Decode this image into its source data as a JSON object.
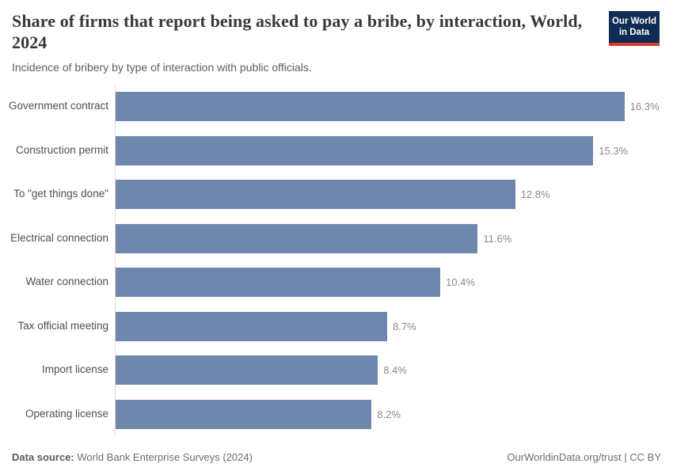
{
  "header": {
    "title": "Share of firms that report being asked to pay a bribe, by interaction, World, 2024",
    "subtitle": "Incidence of bribery by type of interaction with public officials.",
    "logo": {
      "line1": "Our World",
      "line2": "in Data",
      "navy_color": "#0f2c52",
      "red_color": "#dc3a2f"
    }
  },
  "chart_data": {
    "type": "bar",
    "orientation": "horizontal",
    "categories": [
      "Government contract",
      "Construction permit",
      "To \"get things done\"",
      "Electrical connection",
      "Water connection",
      "Tax official meeting",
      "Import license",
      "Operating license"
    ],
    "values": [
      16.3,
      15.3,
      12.8,
      11.6,
      10.4,
      8.7,
      8.4,
      8.2
    ],
    "value_labels": [
      "16.3%",
      "15.3%",
      "12.8%",
      "11.6%",
      "10.4%",
      "8.7%",
      "8.4%",
      "8.2%"
    ],
    "title": "Share of firms that report being asked to pay a bribe, by interaction, World, 2024",
    "xlabel": "",
    "ylabel": "",
    "xlim": [
      0,
      17.5
    ],
    "grid": false,
    "legend": false,
    "bar_color": "#6e87ad",
    "axis_color": "#dcdcdc"
  },
  "footer": {
    "source_label": "Data source:",
    "source_text": " World Bank Enterprise Surveys (2024)",
    "credit": "OurWorldinData.org/trust | CC BY"
  }
}
